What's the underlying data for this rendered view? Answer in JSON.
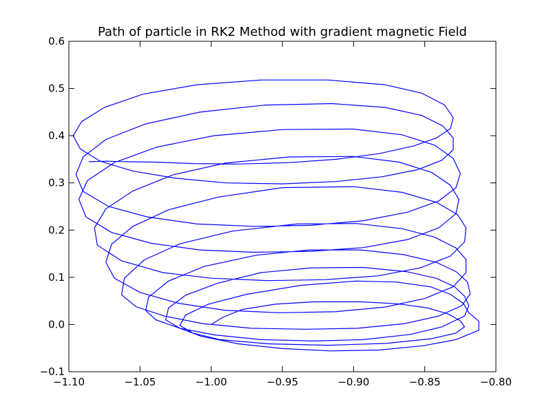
{
  "chart_data": {
    "type": "line",
    "title": "Path of particle in RK2 Method with gradient magnetic Field",
    "xlabel": "",
    "ylabel": "",
    "xlim": [
      -1.1,
      -0.8
    ],
    "ylim": [
      -0.1,
      0.6
    ],
    "grid": false,
    "x_ticks": [
      -1.1,
      -1.05,
      -1.0,
      -0.95,
      -0.9,
      -0.85,
      -0.8
    ],
    "x_tick_labels": [
      "−1.10",
      "−1.05",
      "−1.00",
      "−0.95",
      "−0.90",
      "−0.85",
      "−0.80"
    ],
    "y_ticks": [
      -0.1,
      0.0,
      0.1,
      0.2,
      0.3,
      0.4,
      0.5,
      0.6
    ],
    "y_tick_labels": [
      "−0.1",
      "0.0",
      "0.1",
      "0.2",
      "0.3",
      "0.4",
      "0.5",
      "0.6"
    ],
    "series": [
      {
        "color": "#0000ff",
        "points": [
          [
            -1.0,
            0.0
          ],
          [
            -0.992,
            0.015
          ],
          [
            -0.978,
            0.032
          ],
          [
            -0.955,
            0.043
          ],
          [
            -0.928,
            0.048
          ],
          [
            -0.895,
            0.048
          ],
          [
            -0.869,
            0.044
          ],
          [
            -0.848,
            0.035
          ],
          [
            -0.834,
            0.023
          ],
          [
            -0.825,
            0.008
          ],
          [
            -0.822,
            -0.005
          ],
          [
            -0.828,
            -0.018
          ],
          [
            -0.845,
            -0.03
          ],
          [
            -0.877,
            -0.04
          ],
          [
            -0.918,
            -0.044
          ],
          [
            -0.96,
            -0.041
          ],
          [
            -0.994,
            -0.032
          ],
          [
            -1.013,
            -0.018
          ],
          [
            -1.022,
            -0.002
          ],
          [
            -1.018,
            0.02
          ],
          [
            -1.002,
            0.043
          ],
          [
            -0.975,
            0.064
          ],
          [
            -0.937,
            0.083
          ],
          [
            -0.898,
            0.092
          ],
          [
            -0.87,
            0.09
          ],
          [
            -0.846,
            0.08
          ],
          [
            -0.832,
            0.064
          ],
          [
            -0.823,
            0.045
          ],
          [
            -0.819,
            0.025
          ],
          [
            -0.812,
            0.007
          ],
          [
            -0.812,
            -0.012
          ],
          [
            -0.828,
            -0.032
          ],
          [
            -0.851,
            -0.045
          ],
          [
            -0.882,
            -0.054
          ],
          [
            -0.916,
            -0.056
          ],
          [
            -0.95,
            -0.051
          ],
          [
            -0.981,
            -0.041
          ],
          [
            -1.007,
            -0.025
          ],
          [
            -1.022,
            -0.008
          ],
          [
            -1.032,
            0.01
          ],
          [
            -1.03,
            0.035
          ],
          [
            -1.018,
            0.062
          ],
          [
            -0.996,
            0.087
          ],
          [
            -0.965,
            0.11
          ],
          [
            -0.929,
            0.12
          ],
          [
            -0.893,
            0.121
          ],
          [
            -0.863,
            0.112
          ],
          [
            -0.842,
            0.098
          ],
          [
            -0.829,
            0.08
          ],
          [
            -0.822,
            0.06
          ],
          [
            -0.819,
            0.04
          ],
          [
            -0.822,
            0.018
          ],
          [
            -0.838,
            -0.005
          ],
          [
            -0.86,
            -0.021
          ],
          [
            -0.893,
            -0.032
          ],
          [
            -0.928,
            -0.035
          ],
          [
            -0.965,
            -0.032
          ],
          [
            -0.998,
            -0.022
          ],
          [
            -1.022,
            -0.008
          ],
          [
            -1.039,
            0.01
          ],
          [
            -1.046,
            0.03
          ],
          [
            -1.044,
            0.058
          ],
          [
            -1.03,
            0.092
          ],
          [
            -1.005,
            0.123
          ],
          [
            -0.968,
            0.147
          ],
          [
            -0.931,
            0.158
          ],
          [
            -0.895,
            0.158
          ],
          [
            -0.865,
            0.148
          ],
          [
            -0.842,
            0.132
          ],
          [
            -0.828,
            0.112
          ],
          [
            -0.82,
            0.09
          ],
          [
            -0.818,
            0.065
          ],
          [
            -0.824,
            0.04
          ],
          [
            -0.84,
            0.018
          ],
          [
            -0.864,
            0.002
          ],
          [
            -0.897,
            -0.008
          ],
          [
            -0.934,
            -0.01
          ],
          [
            -0.972,
            -0.008
          ],
          [
            -1.006,
            0.002
          ],
          [
            -1.033,
            0.018
          ],
          [
            -1.053,
            0.038
          ],
          [
            -1.063,
            0.063
          ],
          [
            -1.061,
            0.098
          ],
          [
            -1.047,
            0.137
          ],
          [
            -1.022,
            0.171
          ],
          [
            -0.985,
            0.198
          ],
          [
            -0.94,
            0.213
          ],
          [
            -0.898,
            0.214
          ],
          [
            -0.866,
            0.203
          ],
          [
            -0.843,
            0.185
          ],
          [
            -0.828,
            0.162
          ],
          [
            -0.821,
            0.138
          ],
          [
            -0.821,
            0.11
          ],
          [
            -0.83,
            0.08
          ],
          [
            -0.85,
            0.055
          ],
          [
            -0.878,
            0.037
          ],
          [
            -0.913,
            0.027
          ],
          [
            -0.952,
            0.025
          ],
          [
            -0.99,
            0.03
          ],
          [
            -1.023,
            0.045
          ],
          [
            -1.05,
            0.068
          ],
          [
            -1.068,
            0.098
          ],
          [
            -1.074,
            0.132
          ],
          [
            -1.07,
            0.17
          ],
          [
            -1.055,
            0.208
          ],
          [
            -1.03,
            0.243
          ],
          [
            -0.995,
            0.27
          ],
          [
            -0.95,
            0.29
          ],
          [
            -0.9,
            0.292
          ],
          [
            -0.866,
            0.28
          ],
          [
            -0.842,
            0.259
          ],
          [
            -0.827,
            0.233
          ],
          [
            -0.821,
            0.205
          ],
          [
            -0.822,
            0.175
          ],
          [
            -0.832,
            0.145
          ],
          [
            -0.853,
            0.12
          ],
          [
            -0.883,
            0.103
          ],
          [
            -0.92,
            0.095
          ],
          [
            -0.96,
            0.093
          ],
          [
            -1.0,
            0.098
          ],
          [
            -1.034,
            0.11
          ],
          [
            -1.063,
            0.135
          ],
          [
            -1.08,
            0.168
          ],
          [
            -1.082,
            0.205
          ],
          [
            -1.074,
            0.245
          ],
          [
            -1.055,
            0.283
          ],
          [
            -1.027,
            0.317
          ],
          [
            -0.99,
            0.342
          ],
          [
            -0.945,
            0.355
          ],
          [
            -0.9,
            0.356
          ],
          [
            -0.868,
            0.344
          ],
          [
            -0.845,
            0.322
          ],
          [
            -0.832,
            0.295
          ],
          [
            -0.826,
            0.265
          ],
          [
            -0.828,
            0.235
          ],
          [
            -0.84,
            0.205
          ],
          [
            -0.862,
            0.18
          ],
          [
            -0.893,
            0.163
          ],
          [
            -0.93,
            0.155
          ],
          [
            -0.97,
            0.153
          ],
          [
            -1.008,
            0.158
          ],
          [
            -1.042,
            0.172
          ],
          [
            -1.07,
            0.195
          ],
          [
            -1.088,
            0.228
          ],
          [
            -1.093,
            0.265
          ],
          [
            -1.087,
            0.305
          ],
          [
            -1.068,
            0.343
          ],
          [
            -1.038,
            0.376
          ],
          [
            -0.998,
            0.4
          ],
          [
            -0.95,
            0.413
          ],
          [
            -0.9,
            0.414
          ],
          [
            -0.866,
            0.402
          ],
          [
            -0.843,
            0.38
          ],
          [
            -0.83,
            0.352
          ],
          [
            -0.825,
            0.32
          ],
          [
            -0.828,
            0.29
          ],
          [
            -0.84,
            0.262
          ],
          [
            -0.862,
            0.238
          ],
          [
            -0.893,
            0.22
          ],
          [
            -0.93,
            0.21
          ],
          [
            -0.97,
            0.208
          ],
          [
            -1.01,
            0.213
          ],
          [
            -1.045,
            0.228
          ],
          [
            -1.072,
            0.25
          ],
          [
            -1.09,
            0.282
          ],
          [
            -1.095,
            0.318
          ],
          [
            -1.09,
            0.355
          ],
          [
            -1.074,
            0.392
          ],
          [
            -1.046,
            0.425
          ],
          [
            -1.008,
            0.45
          ],
          [
            -0.962,
            0.465
          ],
          [
            -0.915,
            0.468
          ],
          [
            -0.878,
            0.46
          ],
          [
            -0.852,
            0.443
          ],
          [
            -0.837,
            0.42
          ],
          [
            -0.83,
            0.395
          ],
          [
            -0.83,
            0.37
          ],
          [
            -0.838,
            0.348
          ],
          [
            -0.855,
            0.328
          ],
          [
            -0.88,
            0.313
          ],
          [
            -0.912,
            0.303
          ],
          [
            -0.95,
            0.298
          ],
          [
            -0.99,
            0.3
          ],
          [
            -1.025,
            0.31
          ],
          [
            -1.055,
            0.325
          ],
          [
            -1.078,
            0.346
          ],
          [
            -1.092,
            0.372
          ],
          [
            -1.097,
            0.4
          ],
          [
            -1.091,
            0.43
          ],
          [
            -1.075,
            0.46
          ],
          [
            -1.048,
            0.488
          ],
          [
            -1.01,
            0.508
          ],
          [
            -0.965,
            0.518
          ],
          [
            -0.918,
            0.518
          ],
          [
            -0.878,
            0.508
          ],
          [
            -0.852,
            0.49
          ],
          [
            -0.836,
            0.465
          ],
          [
            -0.83,
            0.438
          ],
          [
            -0.832,
            0.415
          ],
          [
            -0.842,
            0.395
          ],
          [
            -0.858,
            0.378
          ],
          [
            -0.882,
            0.362
          ],
          [
            -0.912,
            0.35
          ],
          [
            -0.945,
            0.343
          ],
          [
            -0.98,
            0.34
          ],
          [
            -1.012,
            0.341
          ],
          [
            -1.04,
            0.344
          ],
          [
            -1.06,
            0.345
          ],
          [
            -1.074,
            0.346
          ],
          [
            -1.086,
            0.345
          ]
        ]
      }
    ]
  }
}
